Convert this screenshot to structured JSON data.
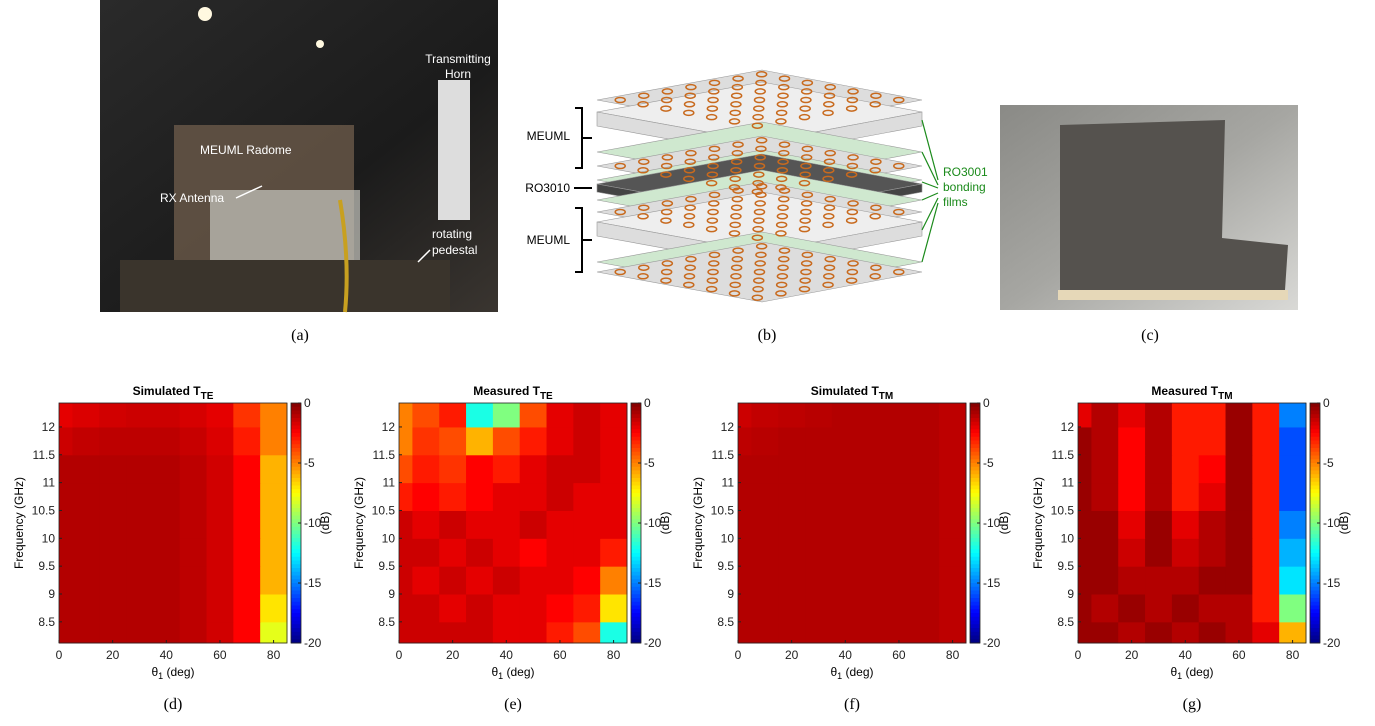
{
  "panels": [
    {
      "caption": "(a)",
      "labels": [
        "Transmitting",
        "Horn",
        "MEUML Radome",
        "RX Antenna",
        "rotating",
        "pedestal"
      ]
    },
    {
      "caption": "(b)",
      "labels": [
        "MEUML",
        "RO3010",
        "MEUML",
        "RO3001",
        "bonding",
        "films"
      ]
    },
    {
      "caption": "(c)"
    }
  ],
  "chart_data": [
    {
      "type": "heatmap",
      "title": "Simulated T",
      "title_subscript": "TE",
      "caption": "(d)",
      "ylabel": "Frequency (GHz)",
      "xlabel": "θ",
      "xlabel_subscript": "1",
      "xlabel_suffix": " (deg)",
      "colorbar_label": "(dB)",
      "x": [
        0,
        10,
        20,
        30,
        40,
        50,
        60,
        70,
        80
      ],
      "y": [
        8.25,
        8.75,
        9.25,
        9.75,
        10.25,
        10.75,
        11.25,
        11.75,
        12.25
      ],
      "z": [
        [
          -1,
          -1,
          -1,
          -1,
          -1,
          -1.2,
          -1.6,
          -2.5,
          -8
        ],
        [
          -1,
          -1,
          -1,
          -1,
          -1,
          -1.2,
          -1.6,
          -2.5,
          -7
        ],
        [
          -1,
          -1,
          -1,
          -1,
          -1,
          -1.2,
          -1.6,
          -2.5,
          -6
        ],
        [
          -1,
          -1,
          -1,
          -1,
          -1,
          -1.2,
          -1.6,
          -2.5,
          -6
        ],
        [
          -1,
          -1,
          -1,
          -1,
          -1,
          -1.2,
          -1.6,
          -2.5,
          -6
        ],
        [
          -1,
          -1,
          -1,
          -1,
          -1,
          -1.2,
          -1.6,
          -2.5,
          -6
        ],
        [
          -1,
          -1,
          -1,
          -1,
          -1,
          -1.2,
          -1.6,
          -2.5,
          -6
        ],
        [
          -1.5,
          -1.3,
          -1.2,
          -1.2,
          -1.2,
          -1.4,
          -1.8,
          -3,
          -5
        ],
        [
          -2,
          -1.8,
          -1.6,
          -1.5,
          -1.5,
          -1.7,
          -2,
          -3.5,
          -5
        ]
      ],
      "xlim": [
        0,
        85
      ],
      "ylim": [
        8.12,
        12.43
      ],
      "clim": [
        -20,
        0
      ],
      "xticks": [
        0,
        20,
        40,
        60,
        80
      ],
      "yticks": [
        8.5,
        9,
        9.5,
        10,
        10.5,
        11,
        11.5,
        12
      ],
      "cticks": [
        0,
        -5,
        -10,
        -15,
        -20
      ]
    },
    {
      "type": "heatmap",
      "title": "Measured T",
      "title_subscript": "TE",
      "caption": "(e)",
      "ylabel": "Frequency (GHz)",
      "xlabel": "θ",
      "xlabel_subscript": "1",
      "xlabel_suffix": " (deg)",
      "colorbar_label": "(dB)",
      "x": [
        0,
        10,
        20,
        30,
        40,
        50,
        60,
        70,
        80
      ],
      "y": [
        8.25,
        8.75,
        9.25,
        9.75,
        10.25,
        10.75,
        11.25,
        11.75,
        12.25
      ],
      "z": [
        [
          -1.5,
          -1.5,
          -1.5,
          -1.5,
          -2,
          -2,
          -3,
          -4,
          -12
        ],
        [
          -1.5,
          -1.5,
          -2,
          -1.5,
          -2,
          -2,
          -2.5,
          -3,
          -7
        ],
        [
          -1.5,
          -2,
          -1.5,
          -2,
          -1.5,
          -2,
          -2,
          -2.5,
          -5
        ],
        [
          -1.5,
          -1.5,
          -2,
          -1.5,
          -2,
          -2.5,
          -2,
          -2,
          -3
        ],
        [
          -1.5,
          -2,
          -1.5,
          -2,
          -2,
          -1.5,
          -2,
          -2,
          -2
        ],
        [
          -3,
          -2.5,
          -3,
          -2.5,
          -2,
          -2,
          -1.5,
          -2,
          -2
        ],
        [
          -4,
          -3,
          -3.5,
          -2.5,
          -3,
          -2,
          -1.5,
          -1.5,
          -2
        ],
        [
          -5,
          -3.5,
          -4,
          -6,
          -4,
          -3,
          -2,
          -1.5,
          -2
        ],
        [
          -5,
          -4,
          -3,
          -12,
          -10,
          -4,
          -2,
          -1.5,
          -2
        ]
      ],
      "xlim": [
        0,
        85
      ],
      "ylim": [
        8.12,
        12.43
      ],
      "clim": [
        -20,
        0
      ],
      "xticks": [
        0,
        20,
        40,
        60,
        80
      ],
      "yticks": [
        8.5,
        9,
        9.5,
        10,
        10.5,
        11,
        11.5,
        12
      ],
      "cticks": [
        0,
        -5,
        -10,
        -15,
        -20
      ]
    },
    {
      "type": "heatmap",
      "title": "Simulated T",
      "title_subscript": "TM",
      "caption": "(f)",
      "ylabel": "Frequency (GHz)",
      "xlabel": "θ",
      "xlabel_subscript": "1",
      "xlabel_suffix": " (deg)",
      "colorbar_label": "(dB)",
      "x": [
        0,
        10,
        20,
        30,
        40,
        50,
        60,
        70,
        80
      ],
      "y": [
        8.25,
        8.75,
        9.25,
        9.75,
        10.25,
        10.75,
        11.25,
        11.75,
        12.25
      ],
      "z": [
        [
          -1,
          -1,
          -1,
          -1,
          -1,
          -1,
          -1,
          -1,
          -1.2
        ],
        [
          -1,
          -1,
          -1,
          -1,
          -1,
          -1,
          -1,
          -1,
          -1.2
        ],
        [
          -1,
          -1,
          -1,
          -1,
          -1,
          -1,
          -1,
          -1,
          -1.2
        ],
        [
          -1,
          -1,
          -1,
          -1,
          -1,
          -1,
          -1,
          -1,
          -1.2
        ],
        [
          -1,
          -1,
          -1,
          -1,
          -1,
          -1,
          -1,
          -1,
          -1.2
        ],
        [
          -1,
          -1,
          -1,
          -1,
          -1,
          -1,
          -1,
          -1,
          -1.2
        ],
        [
          -1,
          -1,
          -1,
          -1,
          -1,
          -1,
          -1,
          -1,
          -1.2
        ],
        [
          -1.2,
          -1.1,
          -1,
          -1,
          -1,
          -1,
          -1,
          -1,
          -1.2
        ],
        [
          -1.5,
          -1.3,
          -1.2,
          -1.1,
          -1,
          -1,
          -1,
          -1,
          -1.2
        ]
      ],
      "xlim": [
        0,
        85
      ],
      "ylim": [
        8.12,
        12.43
      ],
      "clim": [
        -20,
        0
      ],
      "xticks": [
        0,
        20,
        40,
        60,
        80
      ],
      "yticks": [
        8.5,
        9,
        9.5,
        10,
        10.5,
        11,
        11.5,
        12
      ],
      "cticks": [
        0,
        -5,
        -10,
        -15,
        -20
      ]
    },
    {
      "type": "heatmap",
      "title": "Measured T",
      "title_subscript": "TM",
      "caption": "(g)",
      "ylabel": "Frequency (GHz)",
      "xlabel": "θ",
      "xlabel_subscript": "1",
      "xlabel_suffix": " (deg)",
      "colorbar_label": "(dB)",
      "x": [
        0,
        10,
        20,
        30,
        40,
        50,
        60,
        70,
        80
      ],
      "y": [
        8.25,
        8.75,
        9.25,
        9.75,
        10.25,
        10.75,
        11.25,
        11.75,
        12.25
      ],
      "z": [
        [
          -0.5,
          -0.5,
          -1,
          -0.5,
          -1,
          -0.5,
          -1,
          -2,
          -6
        ],
        [
          -0.5,
          -1,
          -0.5,
          -1,
          -0.5,
          -1,
          -1,
          -3,
          -10
        ],
        [
          -0.5,
          -0.5,
          -1,
          -1,
          -1,
          -0.5,
          -0.5,
          -3,
          -13
        ],
        [
          -0.5,
          -0.5,
          -1.5,
          -0.5,
          -1.5,
          -1,
          -0.5,
          -3,
          -14
        ],
        [
          -0.5,
          -0.5,
          -2,
          -0.5,
          -2,
          -1,
          -0.5,
          -3,
          -15
        ],
        [
          -0.5,
          -1,
          -2.5,
          -1,
          -3,
          -2,
          -0.5,
          -3,
          -16
        ],
        [
          -0.5,
          -1,
          -2.5,
          -1,
          -3,
          -2.5,
          -0.5,
          -3,
          -16
        ],
        [
          -0.5,
          -1,
          -2.5,
          -1,
          -3,
          -3,
          -0.5,
          -3,
          -16
        ],
        [
          -2,
          -1,
          -2,
          -1,
          -3,
          -3,
          -0.5,
          -3,
          -15
        ]
      ],
      "xlim": [
        0,
        85
      ],
      "ylim": [
        8.12,
        12.43
      ],
      "clim": [
        -20,
        0
      ],
      "xticks": [
        0,
        20,
        40,
        60,
        80
      ],
      "yticks": [
        8.5,
        9,
        9.5,
        10,
        10.5,
        11,
        11.5,
        12
      ],
      "cticks": [
        0,
        -5,
        -10,
        -15,
        -20
      ]
    }
  ]
}
